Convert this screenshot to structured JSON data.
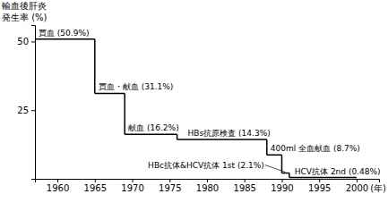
{
  "chart_data": {
    "type": "line",
    "line_style": "step",
    "y_label": [
      "輸血後肝炎",
      "発生率 (%)"
    ],
    "x_label": "(年)",
    "xlim": [
      1957,
      2003
    ],
    "xticks": [
      1960,
      1965,
      1970,
      1975,
      1980,
      1985,
      1990,
      1995,
      2000
    ],
    "ylim": [
      0,
      56
    ],
    "yticks": [
      25,
      50
    ],
    "data_labels": true,
    "series": [
      {
        "color": "#000000",
        "x": [
          1957,
          1965,
          1969,
          1976,
          1988,
          1990,
          1991
        ],
        "x_end": 2000,
        "values": [
          50.9,
          31.1,
          16.2,
          14.3,
          8.7,
          2.1,
          0.48
        ],
        "value_labels": [
          "買血 (50.9%)",
          "買血・献血 (31.1%)",
          "献血 (16.2%)",
          "HBs抗原検査 (14.3%)",
          "400ml 全血献血 (8.7%)",
          "HBc抗体&HCV抗体 1st (2.1%)",
          "HCV抗体 2nd (0.48%)"
        ]
      }
    ]
  }
}
